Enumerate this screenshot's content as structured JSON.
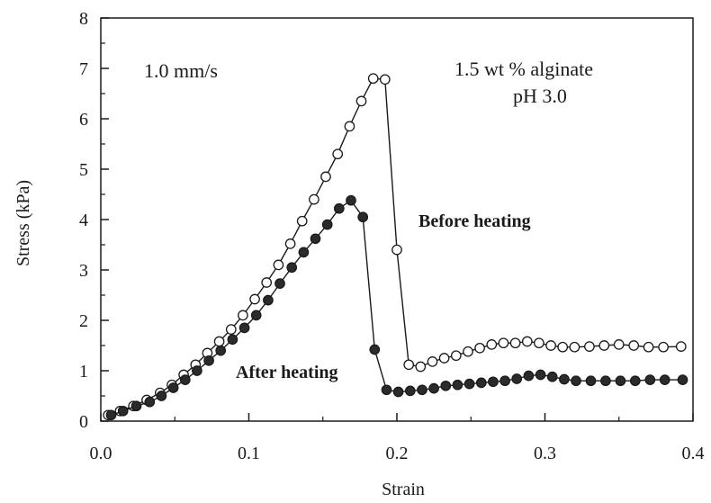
{
  "chart_data": {
    "type": "line",
    "xlabel": "Strain",
    "ylabel": "Stress (kPa)",
    "xlim": [
      0.0,
      0.4
    ],
    "ylim": [
      0,
      8
    ],
    "xticks": [
      "0.0",
      "0.1",
      "0.2",
      "0.3",
      "0.4"
    ],
    "yticks": [
      "0",
      "1",
      "2",
      "3",
      "4",
      "5",
      "6",
      "7",
      "8"
    ],
    "grid": false,
    "annotations": [
      "1.0 mm/s",
      "1.5 wt % alginate",
      "pH 3.0"
    ],
    "colors": {
      "axis": "#1a1a1a",
      "open_marker_fill": "#ffffff",
      "filled_marker_fill": "#2b2b2b"
    },
    "series": [
      {
        "name": "Before heating",
        "marker": "open-circle",
        "x": [
          0.005,
          0.013,
          0.022,
          0.031,
          0.04,
          0.048,
          0.056,
          0.064,
          0.072,
          0.08,
          0.088,
          0.096,
          0.104,
          0.112,
          0.12,
          0.128,
          0.136,
          0.144,
          0.152,
          0.16,
          0.168,
          0.176,
          0.184,
          0.192,
          0.2,
          0.208,
          0.216,
          0.224,
          0.232,
          0.24,
          0.248,
          0.256,
          0.264,
          0.272,
          0.28,
          0.288,
          0.296,
          0.304,
          0.312,
          0.32,
          0.33,
          0.34,
          0.35,
          0.36,
          0.37,
          0.38,
          0.392
        ],
        "y": [
          0.12,
          0.2,
          0.3,
          0.42,
          0.56,
          0.72,
          0.92,
          1.12,
          1.35,
          1.58,
          1.82,
          2.1,
          2.42,
          2.75,
          3.1,
          3.52,
          3.97,
          4.4,
          4.85,
          5.3,
          5.85,
          6.35,
          6.8,
          6.78,
          3.4,
          1.12,
          1.08,
          1.18,
          1.25,
          1.3,
          1.38,
          1.45,
          1.52,
          1.55,
          1.55,
          1.58,
          1.55,
          1.5,
          1.47,
          1.47,
          1.48,
          1.5,
          1.52,
          1.5,
          1.47,
          1.47,
          1.48
        ]
      },
      {
        "name": "After heating",
        "marker": "filled-circle",
        "x": [
          0.007,
          0.015,
          0.024,
          0.033,
          0.041,
          0.049,
          0.057,
          0.065,
          0.073,
          0.081,
          0.089,
          0.097,
          0.105,
          0.113,
          0.121,
          0.129,
          0.137,
          0.145,
          0.153,
          0.161,
          0.169,
          0.177,
          0.185,
          0.193,
          0.201,
          0.209,
          0.217,
          0.225,
          0.233,
          0.241,
          0.249,
          0.257,
          0.265,
          0.273,
          0.281,
          0.289,
          0.297,
          0.305,
          0.313,
          0.321,
          0.331,
          0.341,
          0.351,
          0.361,
          0.371,
          0.381,
          0.393
        ],
        "y": [
          0.12,
          0.2,
          0.3,
          0.38,
          0.5,
          0.66,
          0.82,
          1.0,
          1.2,
          1.4,
          1.62,
          1.85,
          2.1,
          2.4,
          2.73,
          3.05,
          3.35,
          3.62,
          3.9,
          4.22,
          4.38,
          4.05,
          1.42,
          0.62,
          0.58,
          0.6,
          0.62,
          0.65,
          0.7,
          0.72,
          0.74,
          0.76,
          0.78,
          0.8,
          0.84,
          0.9,
          0.92,
          0.88,
          0.83,
          0.8,
          0.8,
          0.8,
          0.8,
          0.8,
          0.82,
          0.82,
          0.82
        ]
      }
    ]
  }
}
